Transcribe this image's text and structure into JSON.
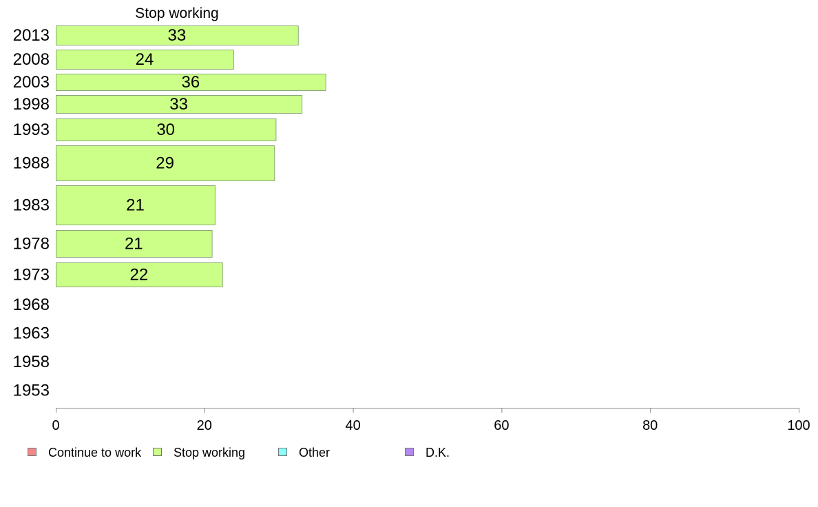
{
  "chart_data": {
    "type": "bar",
    "orientation": "horizontal",
    "title": "Stop working",
    "xlabel": "",
    "ylabel": "",
    "xlim": [
      0,
      100
    ],
    "x_ticks": [
      "0",
      "20",
      "40",
      "60",
      "80",
      "100"
    ],
    "categories": [
      "2013",
      "2008",
      "2003",
      "1998",
      "1993",
      "1988",
      "1983",
      "1978",
      "1973",
      "1968",
      "1963",
      "1958",
      "1953"
    ],
    "series": [
      {
        "name": "Stop working",
        "color": "#ccff88",
        "values": [
          32.6,
          23.9,
          36.3,
          33.1,
          29.6,
          29.4,
          21.4,
          21.0,
          22.4,
          null,
          null,
          null,
          null
        ],
        "labels": [
          "33",
          "24",
          "36",
          "33",
          "30",
          "29",
          "21",
          "21",
          "22",
          "",
          "",
          "",
          ""
        ]
      }
    ],
    "legend": {
      "placement": "bottom",
      "items": [
        {
          "label": "Continue to work",
          "color": "#f08a8a"
        },
        {
          "label": "Stop working",
          "color": "#ccff88"
        },
        {
          "label": "Other",
          "color": "#88ffff"
        },
        {
          "label": "D.K.",
          "color": "#b388f0"
        }
      ]
    }
  }
}
